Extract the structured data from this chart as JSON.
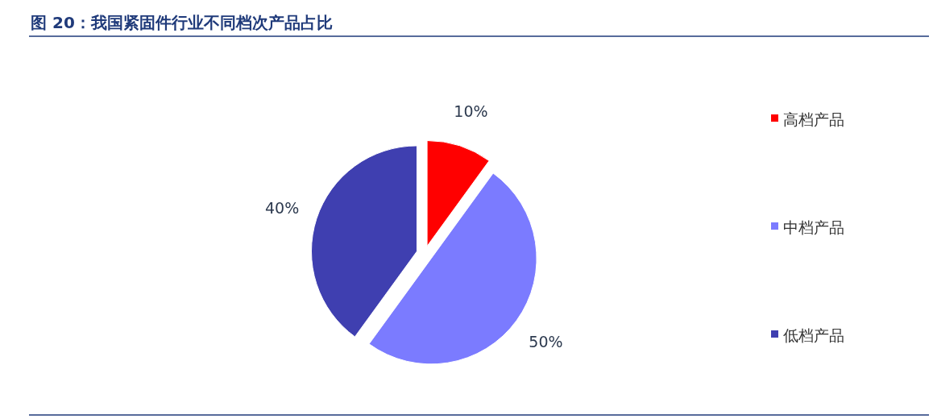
{
  "chart_data": {
    "type": "pie",
    "title": "图 20：我国紧固件行业不同档次产品占比",
    "categories": [
      "高档产品",
      "中档产品",
      "低档产品"
    ],
    "values": [
      10,
      50,
      40
    ],
    "colors": [
      "#ff0000",
      "#7b7bff",
      "#3f3fb0"
    ],
    "value_labels": [
      "10%",
      "50%",
      "40%"
    ],
    "legend": "right"
  }
}
